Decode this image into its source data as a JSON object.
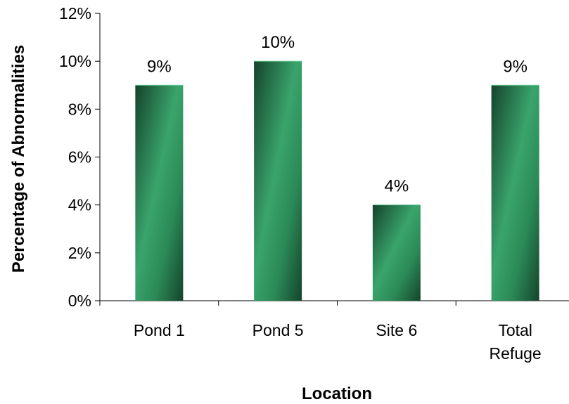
{
  "chart_data": {
    "type": "bar",
    "title": "",
    "xlabel": "Location",
    "ylabel": "Percentage of Abnormalities",
    "categories": [
      [
        "Pond 1"
      ],
      [
        "Pond 5"
      ],
      [
        "Site 6"
      ],
      [
        "Total",
        "Refuge"
      ]
    ],
    "values": [
      9,
      10,
      4,
      9
    ],
    "value_labels": [
      "9%",
      "10%",
      "4%",
      "9%"
    ],
    "ylim": [
      0,
      12
    ],
    "yticks": [
      0,
      2,
      4,
      6,
      8,
      10,
      12
    ],
    "ytick_labels": [
      "0%",
      "2%",
      "4%",
      "6%",
      "8%",
      "10%",
      "12%"
    ],
    "grid": false,
    "legend": "none",
    "colors": {
      "bar_dark": "#14442b",
      "bar_light": "#3aa46c",
      "bar_mid": "#2b8a57",
      "axis": "#000000"
    }
  }
}
